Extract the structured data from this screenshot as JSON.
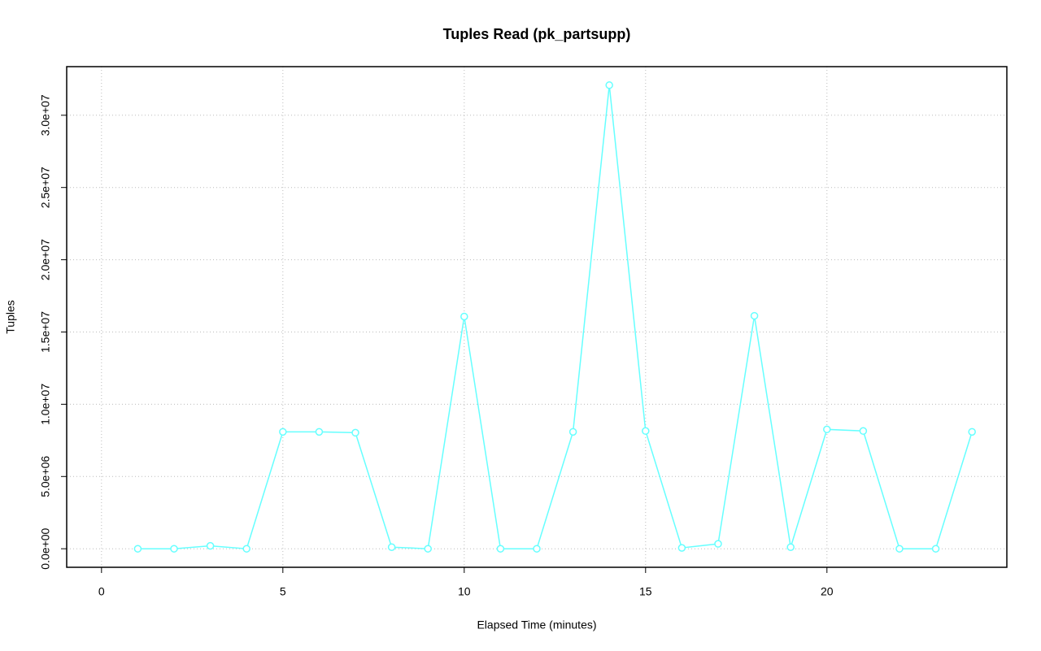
{
  "chart_data": {
    "type": "line",
    "title": "Tuples Read (pk_partsupp)",
    "x_label": "Elapsed Time (minutes)",
    "y_label": "Tuples",
    "x": [
      1,
      2,
      3,
      4,
      5,
      6,
      7,
      8,
      9,
      10,
      11,
      12,
      13,
      14,
      15,
      16,
      17,
      18,
      19,
      20,
      21,
      22,
      23,
      24
    ],
    "series": [
      {
        "color": "#66ffff",
        "values": [
          0,
          0,
          200000,
          0,
          8090000,
          8090000,
          8030000,
          110000,
          0,
          16070000,
          0,
          0,
          8090000,
          32080000,
          8150000,
          60000,
          340000,
          16120000,
          110000,
          8260000,
          8150000,
          0,
          0,
          8090000
        ]
      }
    ],
    "xlim": [
      -0.96,
      24.96
    ],
    "xticks": [
      0,
      5,
      10,
      15,
      20
    ],
    "ylim": [
      -1283000,
      33363000
    ],
    "yticks": [
      {
        "value": 0,
        "label": "0.0e+00"
      },
      {
        "value": 5000000,
        "label": "5.0e+06"
      },
      {
        "value": 10000000,
        "label": "1.0e+07"
      },
      {
        "value": 15000000,
        "label": "1.5e+07"
      },
      {
        "value": 20000000,
        "label": "2.0e+07"
      },
      {
        "value": 25000000,
        "label": "2.5e+07"
      },
      {
        "value": 30000000,
        "label": "3.0e+07"
      }
    ],
    "grid": true
  }
}
